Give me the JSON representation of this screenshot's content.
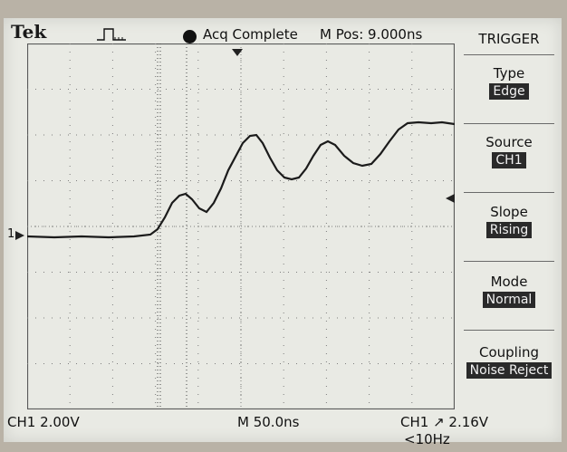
{
  "header": {
    "brand": "Tek",
    "trigger_state_icon": "rising-pulse-icon",
    "acq_status": "Acq Complete",
    "m_pos": "M Pos: 9.000ns"
  },
  "menu": {
    "title": "TRIGGER",
    "items": [
      {
        "label": "Type",
        "value": "Edge"
      },
      {
        "label": "Source",
        "value": "CH1"
      },
      {
        "label": "Slope",
        "value": "Rising"
      },
      {
        "label": "Mode",
        "value": "Normal"
      },
      {
        "label": "Coupling",
        "value": "Noise Reject"
      }
    ]
  },
  "readouts": {
    "ch1_scale": "CH1  2.00V",
    "timebase": "M 50.0ns",
    "trigger": "CH1 ↗ 2.16V",
    "freq": "<10Hz"
  },
  "markers": {
    "ch1_ground": "1"
  },
  "colors": {
    "screen": "#e9eae4",
    "trace": "#1b1b1b",
    "grid": "#7d7d7d"
  }
}
